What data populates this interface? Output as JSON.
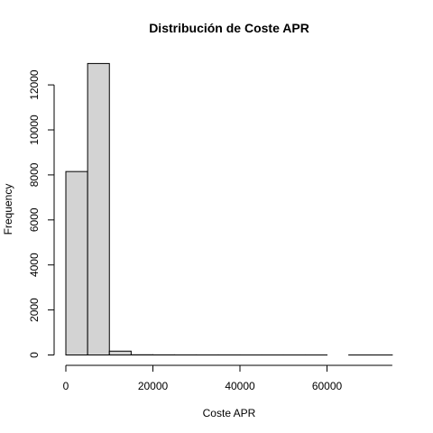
{
  "chart_data": {
    "type": "bar",
    "title": "Distribución de Coste APR",
    "xlabel": "Coste APR",
    "ylabel": "Frequency",
    "bin_width": 5000,
    "bins": [
      {
        "start": 0,
        "end": 5000,
        "count": 8150
      },
      {
        "start": 5000,
        "end": 10000,
        "count": 12950
      },
      {
        "start": 10000,
        "end": 15000,
        "count": 170
      },
      {
        "start": 15000,
        "end": 20000,
        "count": 8
      },
      {
        "start": 20000,
        "end": 25000,
        "count": 5
      },
      {
        "start": 25000,
        "end": 30000,
        "count": 3
      },
      {
        "start": 30000,
        "end": 35000,
        "count": 2
      },
      {
        "start": 35000,
        "end": 40000,
        "count": 2
      },
      {
        "start": 40000,
        "end": 45000,
        "count": 1
      },
      {
        "start": 45000,
        "end": 50000,
        "count": 1
      },
      {
        "start": 50000,
        "end": 55000,
        "count": 1
      },
      {
        "start": 55000,
        "end": 60000,
        "count": 1
      },
      {
        "start": 60000,
        "end": 65000,
        "count": 0
      },
      {
        "start": 65000,
        "end": 70000,
        "count": 1
      },
      {
        "start": 70000,
        "end": 75000,
        "count": 1
      }
    ],
    "xticks": [
      0,
      20000,
      40000,
      60000
    ],
    "xtick_labels": [
      "0",
      "20000",
      "40000",
      "60000"
    ],
    "yticks": [
      0,
      2000,
      4000,
      6000,
      8000,
      10000,
      12000
    ],
    "ytick_labels": [
      "0",
      "2000",
      "4000",
      "6000",
      "8000",
      "10000",
      "12000"
    ],
    "xlim": [
      0,
      75000
    ],
    "ylim": [
      0,
      13000
    ],
    "bar_fill": "#d3d3d3",
    "bar_stroke": "#000000",
    "grid": false,
    "legend": "none"
  }
}
